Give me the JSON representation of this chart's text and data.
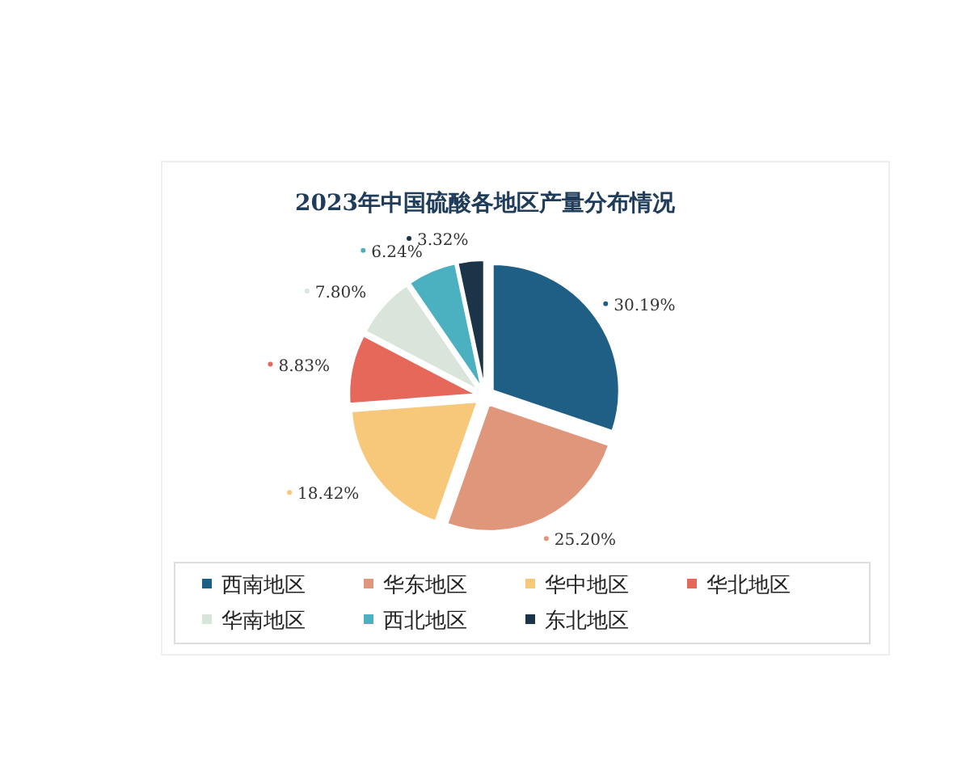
{
  "chart_data": {
    "type": "pie",
    "title": "2023年中国硫酸各地区产量分布情况",
    "categories": [
      "西南地区",
      "华东地区",
      "华中地区",
      "华北地区",
      "华南地区",
      "西北地区",
      "东北地区"
    ],
    "values": [
      30.19,
      25.2,
      18.42,
      8.83,
      7.8,
      6.24,
      3.32
    ],
    "colors": [
      "#1f5f86",
      "#e0967a",
      "#f7c87a",
      "#e5685a",
      "#d9e4da",
      "#4bb0c0",
      "#1c3448"
    ],
    "value_labels": [
      "30.19%",
      "25.20%",
      "18.42%",
      "8.83%",
      "7.80%",
      "6.24%",
      "3.32%"
    ],
    "legend": "bottom"
  }
}
